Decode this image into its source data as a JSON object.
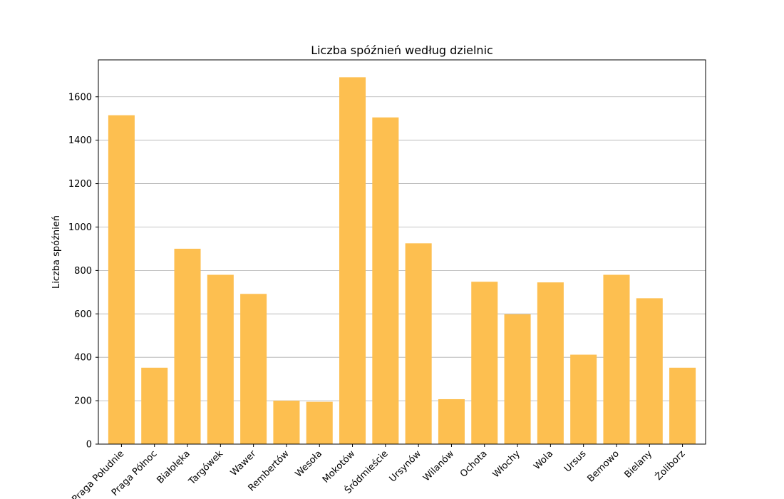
{
  "chart_data": {
    "type": "bar",
    "title": "Liczba spóźnień według dzielnic",
    "xlabel": "",
    "ylabel": "Liczba spóźnień",
    "ylim": [
      0,
      1770
    ],
    "yticks": [
      0,
      200,
      400,
      600,
      800,
      1000,
      1200,
      1400,
      1600
    ],
    "grid": "y",
    "bar_color": "#fdbf50",
    "categories": [
      "Praga Południe",
      "Praga Północ",
      "Białołęka",
      "Targówek",
      "Wawer",
      "Rembertów",
      "Wesoła",
      "Mokotów",
      "Śródmieście",
      "Ursynów",
      "Wilanów",
      "Ochota",
      "Włochy",
      "Wola",
      "Ursus",
      "Bemowo",
      "Bielany",
      "Żoliborz"
    ],
    "values": [
      1515,
      352,
      900,
      780,
      692,
      200,
      195,
      1690,
      1505,
      925,
      207,
      748,
      598,
      745,
      412,
      780,
      672,
      352
    ]
  }
}
